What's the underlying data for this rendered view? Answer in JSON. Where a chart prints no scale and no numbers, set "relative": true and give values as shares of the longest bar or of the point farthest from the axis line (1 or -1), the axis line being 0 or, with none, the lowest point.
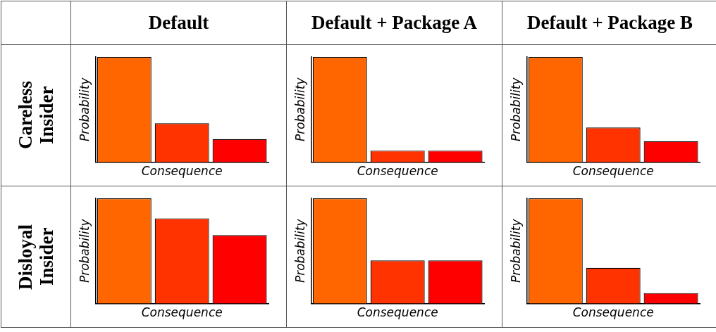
{
  "chart_data": [
    {
      "type": "other",
      "annotations": [
        "Default",
        "Default + Package A",
        "Default + Package B",
        "Careless Insider",
        "Disloyal Insider"
      ]
    },
    {
      "type": "bar",
      "xlabel": "Consequence",
      "ylabel": "Probability",
      "categories": [
        null,
        null,
        null
      ],
      "relative": true,
      "values": [
        1,
        0.37,
        0.22
      ],
      "colors": [
        "#ff6600",
        "#ff3300",
        "#ff0000"
      ]
    },
    {
      "type": "bar",
      "xlabel": "Consequence",
      "ylabel": "Probability",
      "categories": [
        null,
        null,
        null
      ],
      "relative": true,
      "values": [
        1,
        0.11,
        0.11
      ],
      "colors": [
        "#ff6600",
        "#ff3300",
        "#ff0000"
      ]
    },
    {
      "type": "bar",
      "xlabel": "Consequence",
      "ylabel": "Probability",
      "categories": [
        null,
        null,
        null
      ],
      "relative": true,
      "values": [
        1,
        0.33,
        0.2
      ],
      "colors": [
        "#ff6600",
        "#ff3300",
        "#ff0000"
      ]
    },
    {
      "type": "bar",
      "xlabel": "Consequence",
      "ylabel": "Probability",
      "categories": [
        null,
        null,
        null
      ],
      "relative": true,
      "values": [
        1,
        0.81,
        0.65
      ],
      "colors": [
        "#ff6600",
        "#ff3300",
        "#ff0000"
      ]
    },
    {
      "type": "bar",
      "xlabel": "Consequence",
      "ylabel": "Probability",
      "categories": [
        null,
        null,
        null
      ],
      "relative": true,
      "values": [
        1,
        0.41,
        0.41
      ],
      "colors": [
        "#ff6600",
        "#ff3300",
        "#ff0000"
      ]
    },
    {
      "type": "bar",
      "xlabel": "Consequence",
      "ylabel": "Probability",
      "categories": [
        null,
        null,
        null
      ],
      "relative": true,
      "values": [
        1,
        0.34,
        0.1
      ],
      "colors": [
        "#ff6600",
        "#ff3300",
        "#ff0000"
      ]
    }
  ]
}
